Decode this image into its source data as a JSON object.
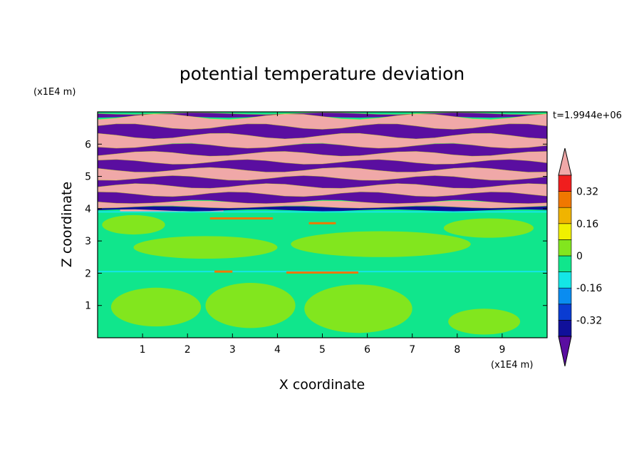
{
  "chart_data": {
    "type": "heatmap",
    "title": "potential temperature deviation",
    "xlabel": "X coordinate",
    "ylabel": "Z coordinate",
    "x_unit_label": "(x1E4 m)",
    "y_unit_label": "(x1E4 m)",
    "time_label": "t=1.9944e+06",
    "xlim": [
      0,
      10
    ],
    "ylim": [
      0,
      7
    ],
    "x_ticks": [
      1,
      2,
      3,
      4,
      5,
      6,
      7,
      8,
      9
    ],
    "y_ticks": [
      1,
      2,
      3,
      4,
      5,
      6
    ],
    "x_tick_labels": [
      "1",
      "2",
      "3",
      "4",
      "5",
      "6",
      "7",
      "8",
      "9"
    ],
    "y_tick_labels": [
      "1",
      "2",
      "3",
      "4",
      "5",
      "6"
    ],
    "colorbar": {
      "levels": [
        -0.4,
        -0.32,
        -0.24,
        -0.16,
        -0.08,
        0,
        0.08,
        0.16,
        0.24,
        0.32,
        0.4
      ],
      "colors": [
        "#5a0ea0",
        "#10109a",
        "#0a3cd2",
        "#0a8cf0",
        "#14e6e6",
        "#10e68c",
        "#82e61e",
        "#f0f000",
        "#f0b400",
        "#f07800",
        "#f01e1e",
        "#f0a8a8"
      ],
      "tick_labels": [
        {
          "value": 0.32,
          "label": "0.32"
        },
        {
          "value": 0.16,
          "label": "0.16"
        },
        {
          "value": 0,
          "label": "0"
        },
        {
          "value": -0.16,
          "label": "-0.16"
        },
        {
          "value": -0.32,
          "label": "-0.32"
        }
      ]
    },
    "upper_layer": {
      "z_range": [
        4.0,
        7.0
      ],
      "bands": [
        {
          "z0": 6.85,
          "z1": 6.95,
          "level": "purple"
        },
        {
          "z0": 6.55,
          "z1": 6.85,
          "level": "pink"
        },
        {
          "z0": 6.25,
          "z1": 6.55,
          "level": "purple"
        },
        {
          "z0": 5.95,
          "z1": 6.25,
          "level": "pink"
        },
        {
          "z0": 5.7,
          "z1": 5.95,
          "level": "purple"
        },
        {
          "z0": 5.45,
          "z1": 5.7,
          "level": "pink"
        },
        {
          "z0": 5.2,
          "z1": 5.45,
          "level": "purple"
        },
        {
          "z0": 4.95,
          "z1": 5.2,
          "level": "pink"
        },
        {
          "z0": 4.7,
          "z1": 4.95,
          "level": "purple"
        },
        {
          "z0": 4.45,
          "z1": 4.7,
          "level": "pink"
        },
        {
          "z0": 4.2,
          "z1": 4.45,
          "level": "purple"
        },
        {
          "z0": 4.05,
          "z1": 4.2,
          "level": "pink"
        },
        {
          "z0": 3.95,
          "z1": 4.05,
          "level": "navy"
        }
      ]
    },
    "lower_layer": {
      "z_range": [
        0,
        4.0
      ],
      "dominant_values": [
        0.0,
        0.05
      ],
      "features": [
        {
          "kind": "blob",
          "x": 1.3,
          "z": 0.95,
          "rx": 1.0,
          "rz": 0.6,
          "value": 0.05
        },
        {
          "kind": "blob",
          "x": 3.4,
          "z": 1.0,
          "rx": 1.0,
          "rz": 0.7,
          "value": 0.0
        },
        {
          "kind": "blob",
          "x": 5.8,
          "z": 0.9,
          "rx": 1.2,
          "rz": 0.75,
          "value": 0.0
        },
        {
          "kind": "blob",
          "x": 8.6,
          "z": 0.5,
          "rx": 0.8,
          "rz": 0.4,
          "value": 0.0
        },
        {
          "kind": "blob",
          "x": 2.4,
          "z": 2.8,
          "rx": 1.6,
          "rz": 0.35,
          "value": 0.05
        },
        {
          "kind": "blob",
          "x": 6.3,
          "z": 2.9,
          "rx": 2.0,
          "rz": 0.4,
          "value": 0.05
        },
        {
          "kind": "blob",
          "x": 8.7,
          "z": 3.4,
          "rx": 1.0,
          "rz": 0.3,
          "value": 0.05
        },
        {
          "kind": "blob",
          "x": 0.8,
          "z": 3.5,
          "rx": 0.7,
          "rz": 0.3,
          "value": 0.05
        },
        {
          "kind": "line",
          "z": 2.05,
          "value": -0.1
        },
        {
          "kind": "line",
          "z": 3.9,
          "value": -0.1
        },
        {
          "kind": "streak",
          "x0": 4.2,
          "x1": 5.8,
          "z": 2.02,
          "value": 0.3
        },
        {
          "kind": "streak",
          "x0": 2.6,
          "x1": 3.0,
          "z": 2.05,
          "value": 0.3
        },
        {
          "kind": "streak",
          "x0": 4.7,
          "x1": 5.3,
          "z": 3.55,
          "value": 0.3
        },
        {
          "kind": "streak",
          "x0": 2.5,
          "x1": 3.9,
          "z": 3.7,
          "value": 0.3
        },
        {
          "kind": "streak",
          "x0": 0.5,
          "x1": 2.8,
          "z": 3.95,
          "value": 0.4
        }
      ]
    },
    "grid": false
  }
}
